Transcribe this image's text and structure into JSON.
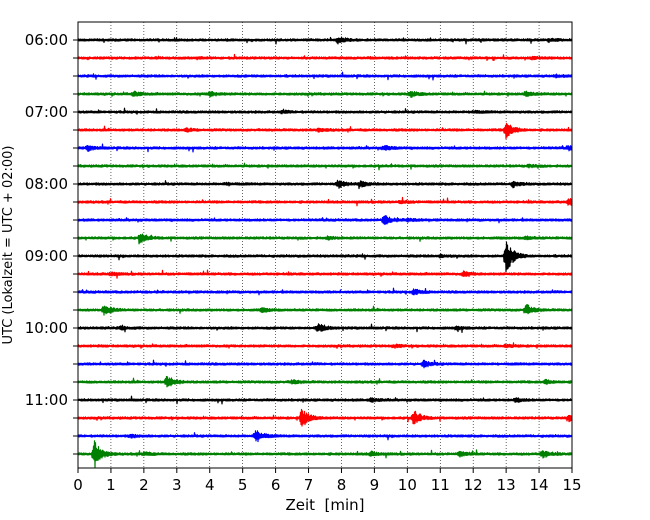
{
  "chart_data": {
    "type": "line",
    "title": "",
    "xlabel": "Zeit  [min]",
    "ylabel": "UTC (Lokalzeit = UTC + 02:00)",
    "xlim": [
      0,
      15
    ],
    "x_ticks": [
      "0",
      "1",
      "2",
      "3",
      "4",
      "5",
      "6",
      "7",
      "8",
      "9",
      "10",
      "11",
      "12",
      "13",
      "14",
      "15"
    ],
    "y_tick_labels": [
      "06:00",
      "07:00",
      "08:00",
      "09:00",
      "10:00",
      "11:00"
    ],
    "x_grid": true,
    "trace_minutes": 15,
    "trace_colors": [
      "#000000",
      "#ff0000",
      "#0000ff",
      "#008000"
    ],
    "traces": [
      {
        "start": "06:00",
        "events": [
          {
            "t": 7.9,
            "amp": 0.35
          },
          {
            "t": 14.3,
            "amp": 0.15
          }
        ]
      },
      {
        "start": "06:15",
        "events": [
          {
            "t": 3.6,
            "amp": 0.1
          },
          {
            "t": 13.8,
            "amp": 0.1
          }
        ]
      },
      {
        "start": "06:30",
        "events": [
          {
            "t": 14.5,
            "amp": 0.1
          }
        ]
      },
      {
        "start": "06:45",
        "events": [
          {
            "t": 1.7,
            "amp": 0.25
          },
          {
            "t": 4.0,
            "amp": 0.25
          },
          {
            "t": 10.1,
            "amp": 0.3
          },
          {
            "t": 13.6,
            "amp": 0.25
          }
        ]
      },
      {
        "start": "07:00",
        "events": [
          {
            "t": 6.2,
            "amp": 0.12
          },
          {
            "t": 12.0,
            "amp": 0.12
          }
        ]
      },
      {
        "start": "07:15",
        "events": [
          {
            "t": 3.3,
            "amp": 0.15
          },
          {
            "t": 7.3,
            "amp": 0.15
          },
          {
            "t": 13.0,
            "amp": 0.9
          }
        ]
      },
      {
        "start": "07:30",
        "events": [
          {
            "t": 0.3,
            "amp": 0.25
          },
          {
            "t": 9.3,
            "amp": 0.25
          },
          {
            "t": 14.9,
            "amp": 0.2
          }
        ]
      },
      {
        "start": "07:45",
        "events": [
          {
            "t": 13.7,
            "amp": 0.12
          }
        ]
      },
      {
        "start": "08:00",
        "events": [
          {
            "t": 4.5,
            "amp": 0.12
          },
          {
            "t": 7.9,
            "amp": 0.4
          },
          {
            "t": 8.6,
            "amp": 0.3
          },
          {
            "t": 13.2,
            "amp": 0.3
          }
        ]
      },
      {
        "start": "08:15",
        "events": [
          {
            "t": 9.8,
            "amp": 0.15
          },
          {
            "t": 14.9,
            "amp": 0.35
          }
        ]
      },
      {
        "start": "08:30",
        "events": [
          {
            "t": 9.3,
            "amp": 0.5
          },
          {
            "t": 10.0,
            "amp": 0.15
          }
        ]
      },
      {
        "start": "08:45",
        "events": [
          {
            "t": 1.9,
            "amp": 0.5
          },
          {
            "t": 7.6,
            "amp": 0.15
          },
          {
            "t": 13.6,
            "amp": 0.15
          }
        ]
      },
      {
        "start": "09:00",
        "events": [
          {
            "t": 13.0,
            "amp": 1.9
          },
          {
            "t": 11.0,
            "amp": 0.15
          }
        ]
      },
      {
        "start": "09:15",
        "events": [
          {
            "t": 1.0,
            "amp": 0.15
          },
          {
            "t": 11.7,
            "amp": 0.25
          }
        ]
      },
      {
        "start": "09:30",
        "events": [
          {
            "t": 10.2,
            "amp": 0.3
          }
        ]
      },
      {
        "start": "09:45",
        "events": [
          {
            "t": 0.8,
            "amp": 0.6
          },
          {
            "t": 5.6,
            "amp": 0.2
          },
          {
            "t": 13.6,
            "amp": 0.6
          }
        ]
      },
      {
        "start": "10:00",
        "events": [
          {
            "t": 1.3,
            "amp": 0.15
          },
          {
            "t": 7.3,
            "amp": 0.5
          },
          {
            "t": 11.5,
            "amp": 0.15
          }
        ]
      },
      {
        "start": "10:15",
        "events": [
          {
            "t": 9.6,
            "amp": 0.15
          },
          {
            "t": 13.0,
            "amp": 0.15
          }
        ]
      },
      {
        "start": "10:30",
        "events": [
          {
            "t": 10.5,
            "amp": 0.35
          }
        ]
      },
      {
        "start": "10:45",
        "events": [
          {
            "t": 2.7,
            "amp": 0.7
          },
          {
            "t": 6.5,
            "amp": 0.2
          },
          {
            "t": 14.2,
            "amp": 0.2
          }
        ]
      },
      {
        "start": "11:00",
        "events": [
          {
            "t": 8.9,
            "amp": 0.2
          },
          {
            "t": 13.3,
            "amp": 0.2
          }
        ]
      },
      {
        "start": "11:15",
        "events": [
          {
            "t": 6.8,
            "amp": 1.1
          },
          {
            "t": 10.2,
            "amp": 0.8
          },
          {
            "t": 14.9,
            "amp": 0.3
          }
        ]
      },
      {
        "start": "11:30",
        "events": [
          {
            "t": 5.4,
            "amp": 0.7
          },
          {
            "t": 1.6,
            "amp": 0.15
          }
        ]
      },
      {
        "start": "11:45",
        "events": [
          {
            "t": 0.5,
            "amp": 1.5
          },
          {
            "t": 2.0,
            "amp": 0.2
          },
          {
            "t": 8.9,
            "amp": 0.2
          },
          {
            "t": 11.6,
            "amp": 0.25
          },
          {
            "t": 14.1,
            "amp": 0.4
          }
        ]
      }
    ]
  }
}
